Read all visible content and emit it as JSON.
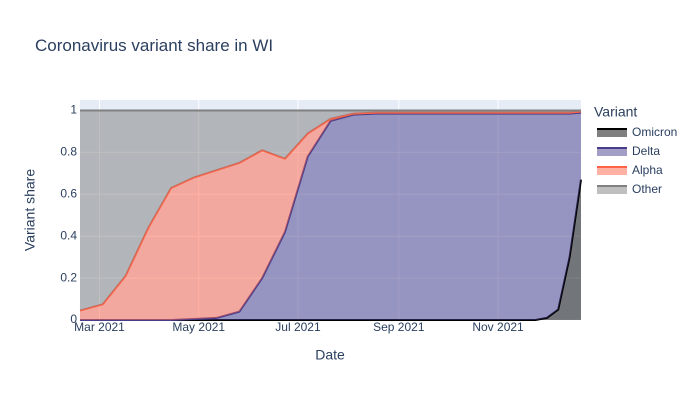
{
  "chart_data": {
    "type": "stacked_area",
    "title": "Coronavirus variant share in WI",
    "x_label": "Date",
    "y_label": "Variant share",
    "legend_title": "Variant",
    "legend_position": "right",
    "grid": true,
    "x": [
      "2021-02-17",
      "2021-03-03",
      "2021-03-17",
      "2021-03-31",
      "2021-04-14",
      "2021-04-28",
      "2021-05-12",
      "2021-05-26",
      "2021-06-09",
      "2021-06-23",
      "2021-07-07",
      "2021-07-21",
      "2021-08-04",
      "2021-08-18",
      "2021-09-01",
      "2021-09-15",
      "2021-09-29",
      "2021-10-13",
      "2021-10-27",
      "2021-11-10",
      "2021-11-24",
      "2021-12-01",
      "2021-12-08",
      "2021-12-15",
      "2021-12-22"
    ],
    "xlim": [
      "2021-02-17",
      "2021-12-22"
    ],
    "xticks": [
      {
        "value": "2021-03-01",
        "label": "Mar 2021"
      },
      {
        "value": "2021-05-01",
        "label": "May 2021"
      },
      {
        "value": "2021-07-01",
        "label": "Jul 2021"
      },
      {
        "value": "2021-09-01",
        "label": "Sep 2021"
      },
      {
        "value": "2021-11-01",
        "label": "Nov 2021"
      }
    ],
    "ylim": [
      0,
      1.05
    ],
    "yticks": [
      0,
      0.2,
      0.4,
      0.6,
      0.8,
      1
    ],
    "series": [
      {
        "name": "Omicron",
        "color": "#000000",
        "values": [
          0,
          0,
          0,
          0,
          0,
          0,
          0,
          0,
          0,
          0,
          0,
          0,
          0,
          0,
          0,
          0,
          0,
          0,
          0,
          0,
          0,
          0.01,
          0.05,
          0.3,
          0.67
        ]
      },
      {
        "name": "Delta",
        "color": "#483d8b",
        "values": [
          0,
          0,
          0,
          0,
          0,
          0.005,
          0.01,
          0.04,
          0.2,
          0.42,
          0.78,
          0.95,
          0.98,
          0.985,
          0.985,
          0.985,
          0.985,
          0.985,
          0.985,
          0.985,
          0.985,
          0.975,
          0.935,
          0.685,
          0.32
        ]
      },
      {
        "name": "Alpha",
        "color": "#ff6347",
        "values": [
          0.045,
          0.075,
          0.21,
          0.44,
          0.63,
          0.675,
          0.705,
          0.71,
          0.61,
          0.35,
          0.11,
          0.01,
          0.005,
          0.005,
          0.005,
          0.005,
          0.005,
          0.005,
          0.005,
          0.005,
          0.005,
          0.005,
          0.005,
          0.005,
          0.005
        ]
      },
      {
        "name": "Other",
        "color": "#808080",
        "values": [
          0.955,
          0.925,
          0.79,
          0.56,
          0.37,
          0.32,
          0.285,
          0.25,
          0.19,
          0.23,
          0.11,
          0.04,
          0.015,
          0.01,
          0.01,
          0.01,
          0.01,
          0.01,
          0.01,
          0.01,
          0.01,
          0.01,
          0.01,
          0.01,
          0.005
        ]
      }
    ]
  }
}
